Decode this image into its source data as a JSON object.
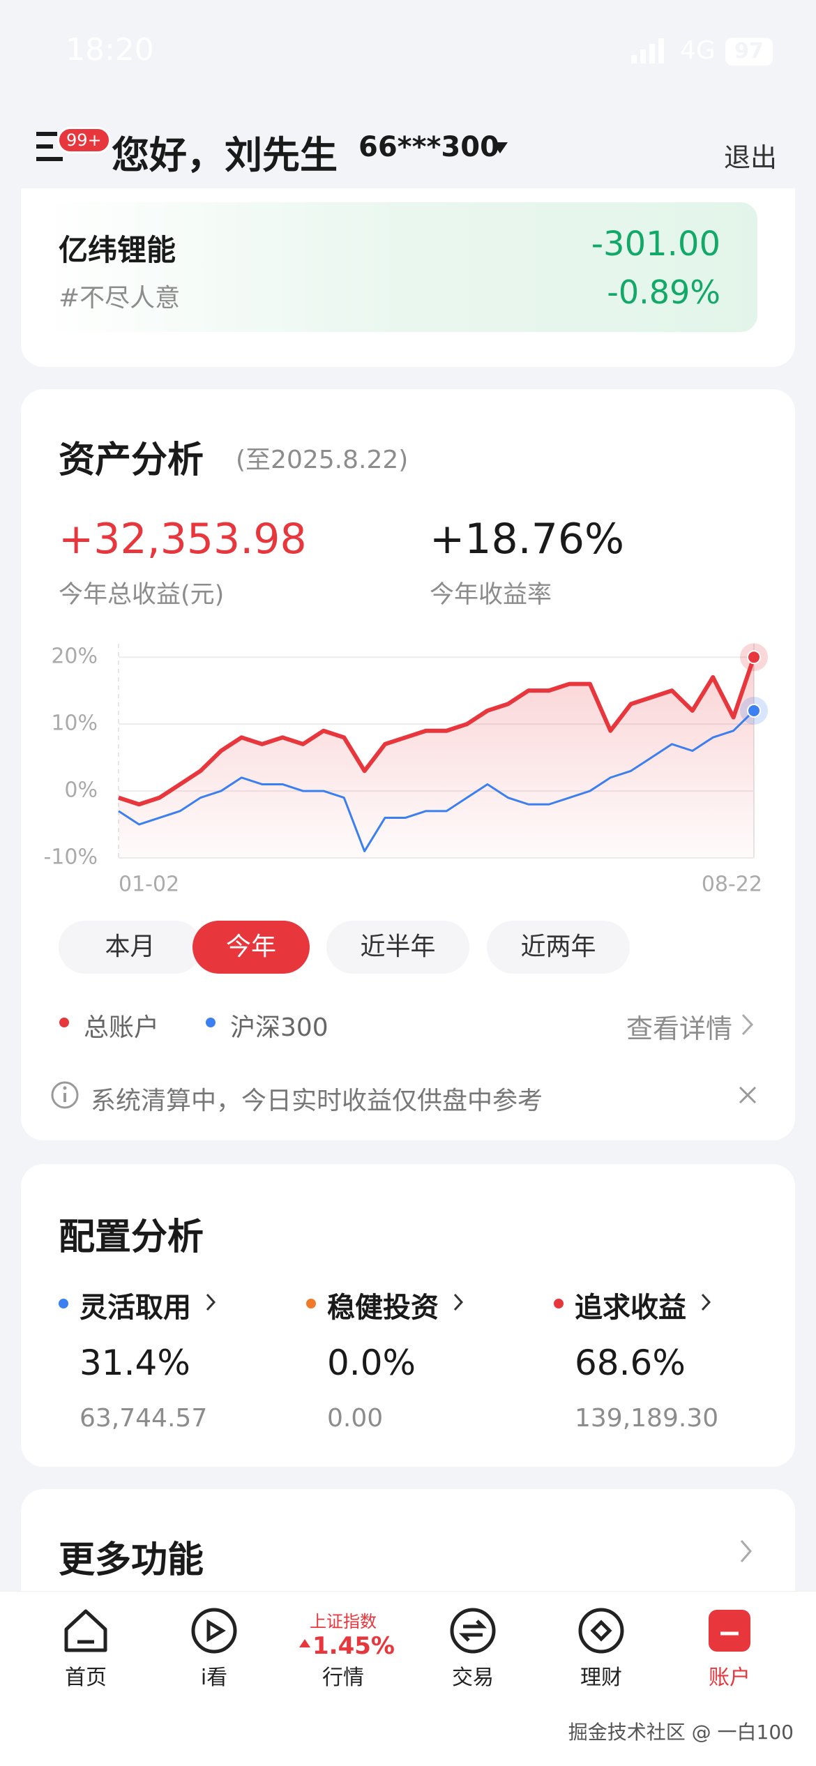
{
  "status_bar": {
    "time": "18:20",
    "network": "4G",
    "battery": "97"
  },
  "header": {
    "badge": "99+",
    "greeting": "您好，刘先生",
    "account": "66***300",
    "logout": "退出"
  },
  "stock_card": {
    "name": "亿纬锂能",
    "tag": "#不尽人意",
    "amount": "-301.00",
    "percent": "-0.89%"
  },
  "asset_analysis": {
    "title": "资产分析",
    "date": "(至2025.8.22)",
    "total_profit": "+32,353.98",
    "total_profit_label": "今年总收益(元)",
    "return_rate": "+18.76%",
    "return_rate_label": "今年收益率",
    "chart": {
      "type": "line",
      "ylim": [
        -10,
        22
      ],
      "yticks": [
        {
          "value": -10,
          "label": "-10%"
        },
        {
          "value": 0,
          "label": "0%"
        },
        {
          "value": 10,
          "label": "10%"
        },
        {
          "value": 20,
          "label": "20%"
        }
      ],
      "x_labels": [
        "01-02",
        "08-22"
      ],
      "series": [
        {
          "name": "总账户",
          "color": "#e8363d",
          "values": [
            -1,
            -2,
            -1,
            1,
            3,
            6,
            8,
            7,
            8,
            7,
            9,
            8,
            3,
            7,
            8,
            9,
            9,
            10,
            12,
            13,
            15,
            15,
            16,
            16,
            9,
            13,
            14,
            15,
            12,
            17,
            11,
            20
          ]
        },
        {
          "name": "沪深300",
          "color": "#3b7ff0",
          "values": [
            -3,
            -5,
            -4,
            -3,
            -1,
            0,
            2,
            1,
            1,
            0,
            0,
            -1,
            -9,
            -4,
            -4,
            -3,
            -3,
            -1,
            1,
            -1,
            -2,
            -2,
            -1,
            0,
            2,
            3,
            5,
            7,
            6,
            8,
            9,
            12
          ]
        }
      ]
    },
    "periods": [
      "本月",
      "今年",
      "近半年",
      "近两年"
    ],
    "active_period": 1,
    "details": "查看详情",
    "notice": "系统清算中，今日实时收益仅供盘中参考"
  },
  "allocation": {
    "title": "配置分析",
    "items": [
      {
        "name": "灵活取用",
        "color": "#3b7ff0",
        "percent": "31.4%",
        "amount": "63,744.57"
      },
      {
        "name": "稳健投资",
        "color": "#f07a2a",
        "percent": "0.0%",
        "amount": "0.00"
      },
      {
        "name": "追求收益",
        "color": "#e8363d",
        "percent": "68.6%",
        "amount": "139,189.30"
      }
    ]
  },
  "more": {
    "title": "更多功能"
  },
  "tab_bar": {
    "tabs": [
      "首页",
      "i看",
      "行情",
      "交易",
      "理财",
      "账户"
    ],
    "index_name": "上证指数",
    "index_change": "1.45%"
  },
  "watermark": "掘金技术社区 @ 一白100"
}
